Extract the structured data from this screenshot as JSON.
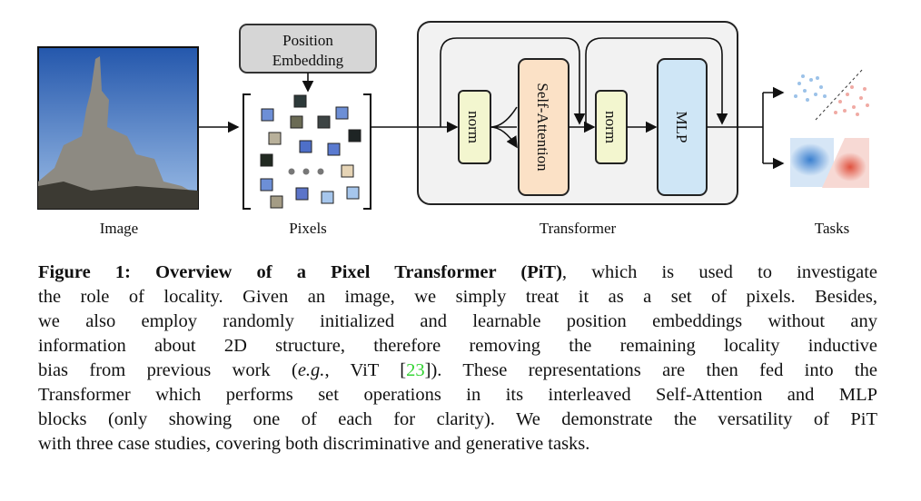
{
  "labels": {
    "image": "Image",
    "pixels": "Pixels",
    "transformer": "Transformer",
    "tasks": "Tasks"
  },
  "position_embedding": [
    "Position",
    "Embedding"
  ],
  "blocks": {
    "norm1": "norm",
    "self_attention": "Self-Attention",
    "norm2": "norm",
    "mlp": "MLP"
  },
  "caption": {
    "label": "Figure 1: Overview of a Pixel Transformer (PiT)",
    "line0_rest": ", which is used to investigate",
    "lines": [
      "the role of locality. Given an image, we simply treat it as a set of pixels. Besides,",
      "we also employ randomly initialized and learnable position embeddings without any",
      "information about 2D structure, therefore removing the remaining locality inductive"
    ],
    "line4": [
      "bias from previous work (",
      "e.g.",
      ", ViT [",
      "23",
      "]). These representations are then fed into the"
    ],
    "lines_after": [
      "Transformer which performs set operations in its interleaved Self-Attention and MLP",
      "blocks (only showing one of each for clarity). We demonstrate the versatility of PiT",
      "with three case studies, covering both discriminative and generative tasks."
    ]
  }
}
